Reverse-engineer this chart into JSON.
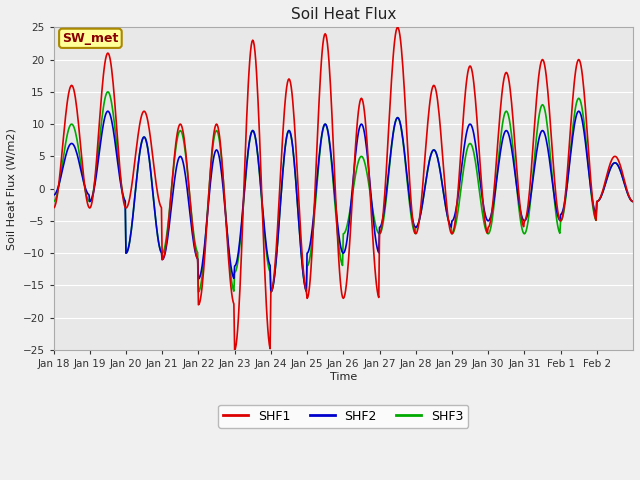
{
  "title": "Soil Heat Flux",
  "ylabel": "Soil Heat Flux (W/m2)",
  "xlabel": "Time",
  "ylim": [
    -25,
    25
  ],
  "plot_bg_color": "#e8e8e8",
  "fig_bg_color": "#f0f0f0",
  "grid_color": "#ffffff",
  "line_colors": {
    "SHF1": "#dd0000",
    "SHF2": "#0000cc",
    "SHF3": "#00aa00"
  },
  "line_widths": {
    "SHF1": 1.2,
    "SHF2": 1.2,
    "SHF3": 1.2
  },
  "annotation_text": "SW_met",
  "annotation_bg": "#ffff99",
  "annotation_border": "#aa8800",
  "annotation_text_color": "#880000",
  "x_tick_labels": [
    "Jan 18",
    "Jan 19",
    "Jan 20",
    "Jan 21",
    "Jan 22",
    "Jan 23",
    "Jan 24",
    "Jan 25",
    "Jan 26",
    "Jan 27",
    "Jan 28",
    "Jan 29",
    "Jan 30",
    "Jan 31",
    "Feb 1",
    "Feb 2"
  ],
  "num_days": 16,
  "points_per_day": 48,
  "shf1_amp": [
    16,
    21,
    12,
    10,
    10,
    23,
    17,
    24,
    14,
    25,
    16,
    19,
    18,
    20,
    20,
    5
  ],
  "shf1_min": [
    -3,
    -3,
    -3,
    -11,
    -18,
    -25,
    -16,
    -17,
    -17,
    -7,
    -7,
    -7,
    -6,
    -5,
    -5,
    -2
  ],
  "shf2_amp": [
    7,
    12,
    8,
    5,
    6,
    9,
    9,
    10,
    10,
    11,
    6,
    10,
    9,
    9,
    12,
    4
  ],
  "shf2_min": [
    -1,
    -2,
    -10,
    -11,
    -14,
    -12,
    -16,
    -10,
    -10,
    -6,
    -6,
    -5,
    -5,
    -5,
    -4,
    -2
  ],
  "shf3_amp": [
    10,
    15,
    8,
    9,
    9,
    9,
    9,
    10,
    5,
    11,
    6,
    7,
    12,
    13,
    14,
    4
  ],
  "shf3_min": [
    -2,
    -2,
    -10,
    -10,
    -16,
    -13,
    -16,
    -12,
    -7,
    -7,
    -6,
    -7,
    -7,
    -7,
    -5,
    -2
  ]
}
